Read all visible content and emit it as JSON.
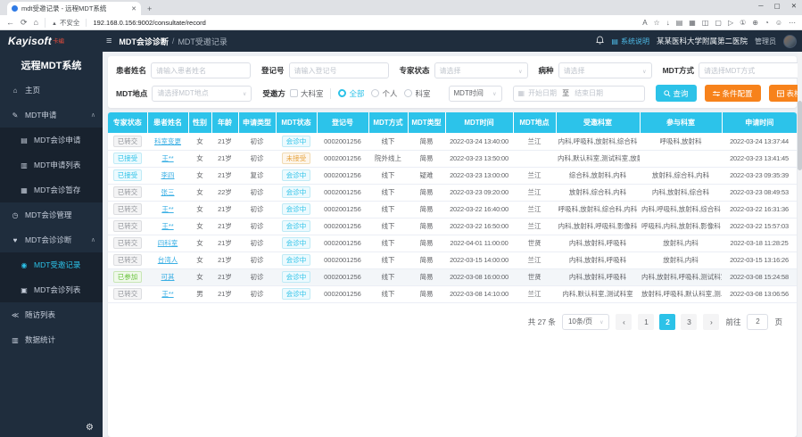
{
  "browser": {
    "tab_title": "mdt受邀记录 - 远程MDT系统",
    "new_tab_label": "+",
    "tab_close_glyph": "✕",
    "back_icon": "←",
    "reload_icon": "⟳",
    "home_icon": "⌂",
    "security_label": "不安全",
    "url": "192.168.0.156:9002/consultate/record",
    "toolbar_icons": [
      {
        "name": "translate-icon",
        "glyph": "A"
      },
      {
        "name": "favorite-star-icon",
        "glyph": "☆"
      },
      {
        "name": "download-icon",
        "glyph": "↓"
      },
      {
        "name": "reading-list-icon",
        "glyph": "▤"
      },
      {
        "name": "collections-icon",
        "glyph": "▦"
      },
      {
        "name": "split-screen-icon",
        "glyph": "◫"
      },
      {
        "name": "sidebar-panel-icon",
        "glyph": "▢"
      },
      {
        "name": "media-control-icon",
        "glyph": "▷"
      },
      {
        "name": "tab-counter-icon",
        "glyph": "①"
      },
      {
        "name": "extensions-icon",
        "glyph": "⊕"
      },
      {
        "name": "sync-icon",
        "glyph": "◔"
      },
      {
        "name": "profile-icon",
        "glyph": "☺"
      },
      {
        "name": "more-menu-icon",
        "glyph": "⋯"
      }
    ],
    "window_controls": [
      {
        "name": "minimize-button",
        "glyph": "─"
      },
      {
        "name": "maximize-button",
        "glyph": "▢"
      },
      {
        "name": "close-button",
        "glyph": "✕"
      }
    ]
  },
  "header": {
    "logo_main": "Kayisoft",
    "logo_sub": "卡编",
    "collapse_icon": "≡",
    "breadcrumb_section": "MDT会诊诊断",
    "breadcrumb_sep": "/",
    "breadcrumb_page": "MDT受邀记录",
    "system_help": "系统说明",
    "hospital": "某某医科大学附属第二医院",
    "role": "管理员"
  },
  "sidebar": {
    "title": "远程MDT系统",
    "items": [
      {
        "label": "主页",
        "icon": "home-icon",
        "level": 1
      },
      {
        "label": "MDT申请",
        "icon": "form-icon",
        "level": 1,
        "expanded": true
      },
      {
        "label": "MDT会诊申请",
        "icon": "doc-icon",
        "level": 2
      },
      {
        "label": "MDT申请列表",
        "icon": "list-icon",
        "level": 2
      },
      {
        "label": "MDT会诊暂存",
        "icon": "save-icon",
        "level": 2
      },
      {
        "label": "MDT会诊管理",
        "icon": "clock-icon",
        "level": 1
      },
      {
        "label": "MDT会诊诊断",
        "icon": "diagnosis-icon",
        "level": 1,
        "expanded": true
      },
      {
        "label": "MDT受邀记录",
        "icon": "record-icon",
        "level": 2,
        "active": true
      },
      {
        "label": "MDT会诊列表",
        "icon": "shield-icon",
        "level": 2
      },
      {
        "label": "随访列表",
        "icon": "share-icon",
        "level": 1
      },
      {
        "label": "数据统计",
        "icon": "chart-icon",
        "level": 1
      }
    ]
  },
  "filters": {
    "patient_name": {
      "label": "患者姓名",
      "placeholder": "请输入患者姓名"
    },
    "reg_no": {
      "label": "登记号",
      "placeholder": "请输入登记号"
    },
    "expert_status": {
      "label": "专家状态",
      "placeholder": "请选择"
    },
    "disease": {
      "label": "病种",
      "placeholder": "请选择"
    },
    "mdt_mode": {
      "label": "MDT方式",
      "placeholder": "请选择MDT方式"
    },
    "mdt_place": {
      "label": "MDT地点",
      "placeholder": "请选择MDT地点"
    },
    "invited_party": {
      "label": "受邀方",
      "checkbox": "大科室",
      "radios": [
        "全部",
        "个人",
        "科室"
      ],
      "selected_radio": "全部"
    },
    "time_field": "MDT时间",
    "date_start": "开始日期",
    "date_sep": "至",
    "date_end": "结束日期",
    "search_btn": "查询",
    "condition_btn": "条件配置",
    "table_btn": "表格配置"
  },
  "table": {
    "columns": [
      "专家状态",
      "患者姓名",
      "性别",
      "年龄",
      "申请类型",
      "MDT状态",
      "登记号",
      "MDT方式",
      "MDT类型",
      "MDT时间",
      "MDT地点",
      "受邀科室",
      "参与科室",
      "申请时间"
    ],
    "rows": [
      {
        "expert_status": "已转交",
        "expert_status_type": "gray",
        "patient_name": "科室变更",
        "gender": "女",
        "age": "21岁",
        "apply_type": "初诊",
        "mdt_status": "会诊中",
        "mdt_status_type": "cyan",
        "reg_no": "0002001256",
        "mdt_mode": "线下",
        "mdt_type": "简易",
        "mdt_time": "2022-03-24 13:40:00",
        "mdt_place": "兰江",
        "invited_depts": "内科,呼吸科,放射科,综合科",
        "participating_depts": "呼吸科,放射科",
        "apply_time": "2022-03-24 13:37:44"
      },
      {
        "expert_status": "已接受",
        "expert_status_type": "cyan",
        "patient_name": "王**",
        "gender": "女",
        "age": "21岁",
        "apply_type": "初诊",
        "mdt_status": "未接受",
        "mdt_status_type": "orange",
        "reg_no": "0002001256",
        "mdt_mode": "院外线上",
        "mdt_type": "简易",
        "mdt_time": "2022-03-23 13:50:00",
        "mdt_place": "",
        "invited_depts": "内科,默认科室,测试科室,放射科",
        "participating_depts": "",
        "apply_time": "2022-03-23 13:41:45"
      },
      {
        "expert_status": "已接受",
        "expert_status_type": "cyan",
        "patient_name": "李四",
        "gender": "女",
        "age": "21岁",
        "apply_type": "复诊",
        "mdt_status": "会诊中",
        "mdt_status_type": "cyan",
        "reg_no": "0002001256",
        "mdt_mode": "线下",
        "mdt_type": "疑难",
        "mdt_time": "2022-03-23 13:00:00",
        "mdt_place": "兰江",
        "invited_depts": "综合科,放射科,内科",
        "participating_depts": "放射科,综合科,内科",
        "apply_time": "2022-03-23 09:35:39"
      },
      {
        "expert_status": "已转交",
        "expert_status_type": "gray",
        "patient_name": "张三",
        "gender": "女",
        "age": "22岁",
        "apply_type": "初诊",
        "mdt_status": "会诊中",
        "mdt_status_type": "cyan",
        "reg_no": "0002001256",
        "mdt_mode": "线下",
        "mdt_type": "简易",
        "mdt_time": "2022-03-23 09:20:00",
        "mdt_place": "兰江",
        "invited_depts": "放射科,综合科,内科",
        "participating_depts": "内科,放射科,综合科",
        "apply_time": "2022-03-23 08:49:53"
      },
      {
        "expert_status": "已转交",
        "expert_status_type": "gray",
        "patient_name": "王**",
        "gender": "女",
        "age": "21岁",
        "apply_type": "初诊",
        "mdt_status": "会诊中",
        "mdt_status_type": "cyan",
        "reg_no": "0002001256",
        "mdt_mode": "线下",
        "mdt_type": "简易",
        "mdt_time": "2022-03-22 16:40:00",
        "mdt_place": "兰江",
        "invited_depts": "呼吸科,放射科,综合科,内科",
        "participating_depts": "内科,呼吸科,放射科,综合科",
        "apply_time": "2022-03-22 16:31:36"
      },
      {
        "expert_status": "已转交",
        "expert_status_type": "gray",
        "patient_name": "王**",
        "gender": "女",
        "age": "21岁",
        "apply_type": "初诊",
        "mdt_status": "会诊中",
        "mdt_status_type": "cyan",
        "reg_no": "0002001256",
        "mdt_mode": "线下",
        "mdt_type": "简易",
        "mdt_time": "2022-03-22 16:50:00",
        "mdt_place": "兰江",
        "invited_depts": "内科,放射科,呼吸科,影像科",
        "participating_depts": "呼吸科,内科,放射科,影像科",
        "apply_time": "2022-03-22 15:57:03"
      },
      {
        "expert_status": "已转交",
        "expert_status_type": "gray",
        "patient_name": "四科室",
        "gender": "女",
        "age": "21岁",
        "apply_type": "初诊",
        "mdt_status": "会诊中",
        "mdt_status_type": "cyan",
        "reg_no": "0002001256",
        "mdt_mode": "线下",
        "mdt_type": "简易",
        "mdt_time": "2022-04-01 11:00:00",
        "mdt_place": "世贤",
        "invited_depts": "内科,放射科,呼吸科",
        "participating_depts": "放射科,内科",
        "apply_time": "2022-03-18 11:28:25"
      },
      {
        "expert_status": "已转交",
        "expert_status_type": "gray",
        "patient_name": "台湾人",
        "gender": "女",
        "age": "21岁",
        "apply_type": "初诊",
        "mdt_status": "会诊中",
        "mdt_status_type": "cyan",
        "reg_no": "0002001256",
        "mdt_mode": "线下",
        "mdt_type": "简易",
        "mdt_time": "2022-03-15 14:00:00",
        "mdt_place": "兰江",
        "invited_depts": "内科,放射科,呼吸科",
        "participating_depts": "放射科,内科",
        "apply_time": "2022-03-15 13:16:26"
      },
      {
        "expert_status": "已参加",
        "expert_status_type": "green",
        "patient_name": "可其",
        "gender": "女",
        "age": "21岁",
        "apply_type": "初诊",
        "mdt_status": "会诊中",
        "mdt_status_type": "cyan",
        "reg_no": "0002001256",
        "mdt_mode": "线下",
        "mdt_type": "简易",
        "mdt_time": "2022-03-08 16:00:00",
        "mdt_place": "世贤",
        "invited_depts": "内科,放射科,呼吸科",
        "participating_depts": "内科,放射科,呼吸科,测试科室",
        "apply_time": "2022-03-08 15:24:58",
        "highlighted": true
      },
      {
        "expert_status": "已转交",
        "expert_status_type": "gray",
        "patient_name": "王**",
        "gender": "男",
        "age": "21岁",
        "apply_type": "初诊",
        "mdt_status": "会诊中",
        "mdt_status_type": "cyan",
        "reg_no": "0002001256",
        "mdt_mode": "线下",
        "mdt_type": "简易",
        "mdt_time": "2022-03-08 14:10:00",
        "mdt_place": "兰江",
        "invited_depts": "内科,默认科室,测试科室",
        "participating_depts": "放射科,呼吸科,默认科室,测...",
        "apply_time": "2022-03-08 13:06:56"
      }
    ]
  },
  "pagination": {
    "total_text": "共 27 条",
    "page_size": "10条/页",
    "prev_icon": "‹",
    "next_icon": "›",
    "pages": [
      "1",
      "2",
      "3"
    ],
    "active_page": "2",
    "jump_label": "前往",
    "jump_value": "2",
    "jump_suffix": "页"
  }
}
